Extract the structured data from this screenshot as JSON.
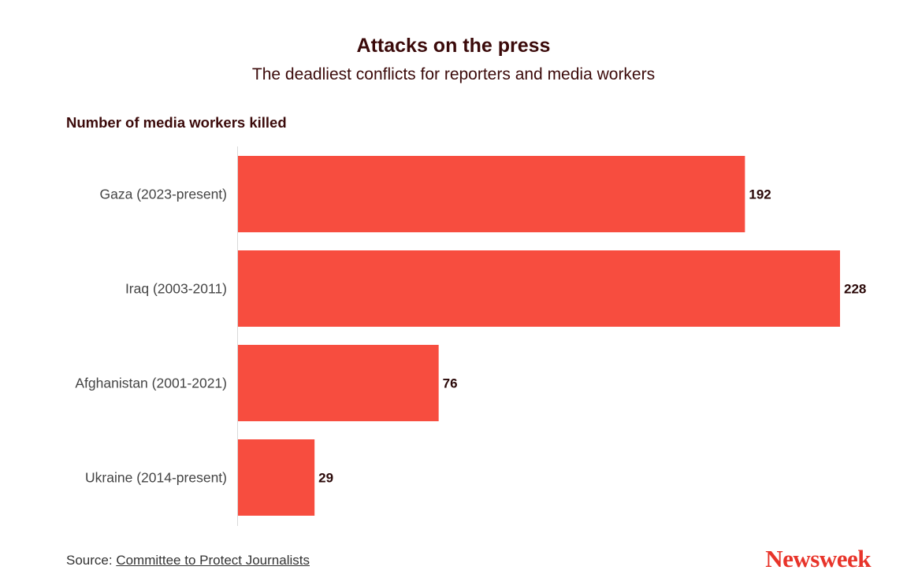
{
  "header": {
    "title": "Attacks on the press",
    "subtitle": "The deadliest conflicts for reporters and media workers"
  },
  "chart_data": {
    "type": "bar",
    "orientation": "horizontal",
    "measure_label": "Number of media workers killed",
    "categories": [
      "Gaza (2023-present)",
      "Iraq (2003-2011)",
      "Afghanistan (2001-2021)",
      "Ukraine (2014-present)"
    ],
    "values": [
      192,
      228,
      76,
      29
    ],
    "data_labels": [
      "192",
      "228",
      "76",
      "29"
    ],
    "xlim": [
      0,
      228
    ],
    "grid": false,
    "legend": "none",
    "bar_color": "#f74d3f"
  },
  "footer": {
    "source_prefix": "Source:",
    "source_link": "Committee to Protect Journalists",
    "logo_text": "Newsweek"
  },
  "colors": {
    "text": "#3b0a0a",
    "bar": "#f74d3f",
    "logo": "#e8342a"
  }
}
